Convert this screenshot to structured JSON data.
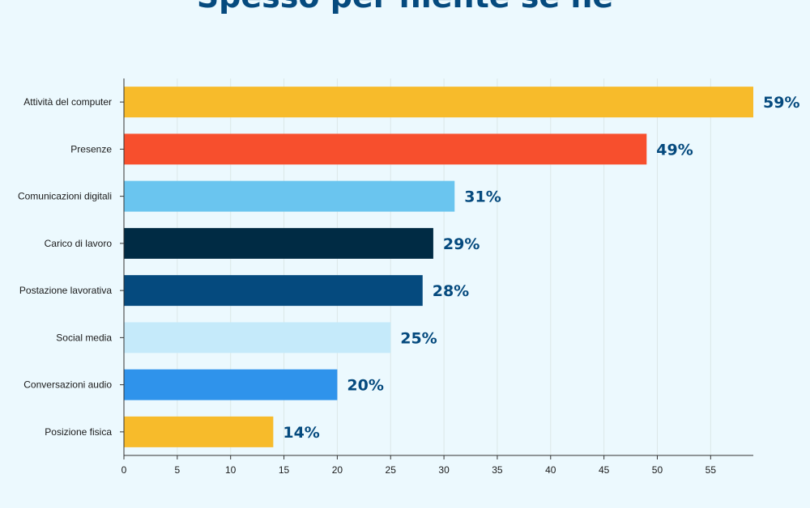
{
  "chart_data": {
    "type": "bar",
    "orientation": "horizontal",
    "title": "Spesso per niente se ne",
    "xlabel": "",
    "ylabel": "",
    "xlim": [
      0,
      59
    ],
    "x_ticks": [
      0,
      5,
      10,
      15,
      20,
      25,
      30,
      35,
      40,
      45,
      50,
      55
    ],
    "grid": "vertical",
    "legend": "none",
    "categories": [
      "Attività del computer",
      "Presenze",
      "Comunicazioni digitali",
      "Carico di lavoro",
      "Postazione lavorativa",
      "Social media",
      "Conversazioni audio",
      "Posizione fisica"
    ],
    "values": [
      59,
      49,
      31,
      29,
      28,
      25,
      20,
      14
    ],
    "value_labels": [
      "59%",
      "49%",
      "31%",
      "29%",
      "28%",
      "25%",
      "20%",
      "14%"
    ],
    "bar_colors": [
      "#f7bb2b",
      "#f74f2d",
      "#6ac5ef",
      "#002b44",
      "#054a7e",
      "#c5eafa",
      "#2f93eb",
      "#f7bb2b"
    ]
  },
  "colors": {
    "background": "#ecf9fe",
    "value_label": "#054a7e",
    "gridline": "#dce8e8",
    "axis": "#333333"
  }
}
